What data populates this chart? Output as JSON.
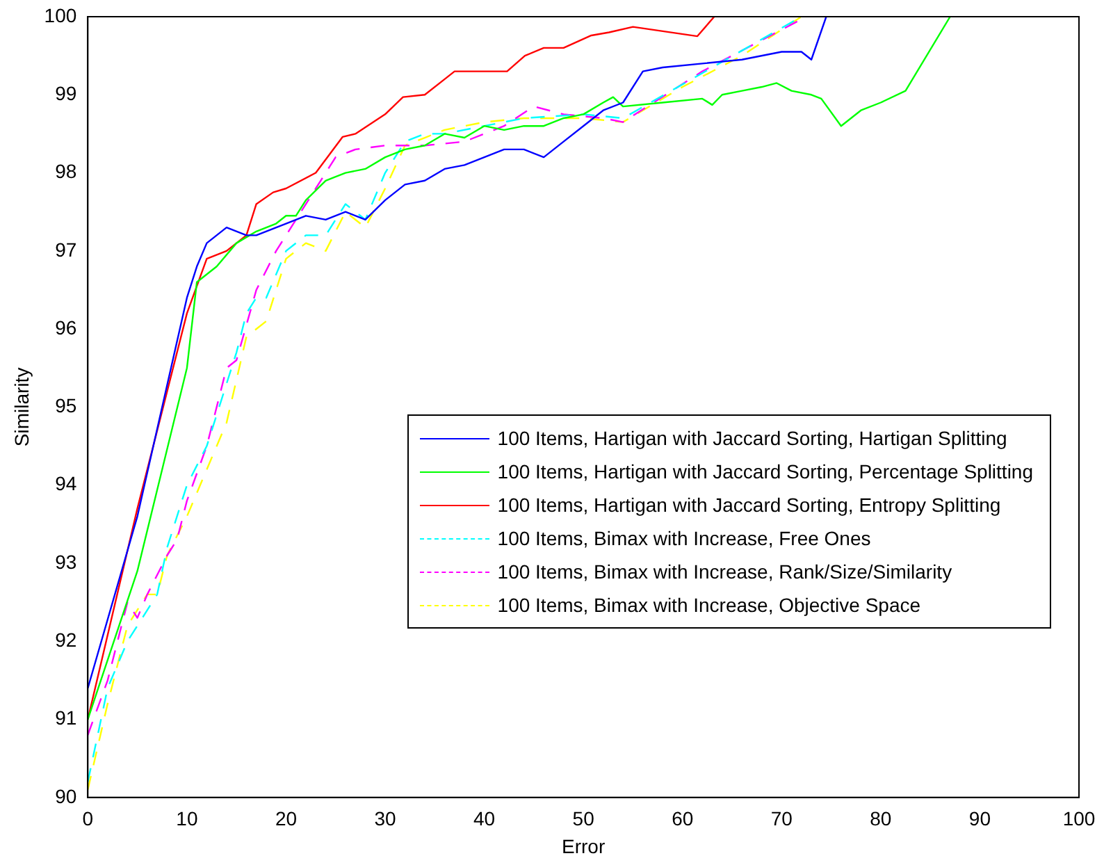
{
  "chart_data": {
    "type": "line",
    "xlabel": "Error",
    "ylabel": "Similarity",
    "xlim": [
      0,
      100
    ],
    "xticks": [
      0,
      10,
      20,
      30,
      40,
      50,
      60,
      70,
      80,
      90,
      100
    ],
    "ylim": [
      90,
      100
    ],
    "yticks": [
      90,
      91,
      92,
      93,
      94,
      95,
      96,
      97,
      98,
      99,
      100
    ],
    "grid": false,
    "legend": "right",
    "marker": "none",
    "series": [
      {
        "name": "100 Items, Hartigan with Jaccard Sorting, Hartigan Splitting",
        "color": "#0000ff",
        "line_style": "solid",
        "x": [
          0,
          5,
          10,
          11,
          12,
          14,
          16,
          17,
          20,
          22,
          24,
          26,
          28,
          30,
          32,
          34,
          36,
          38,
          40,
          42,
          44,
          46,
          48,
          50,
          52,
          54,
          56,
          58,
          62,
          66,
          70,
          72,
          73,
          74.5
        ],
        "values": [
          91.4,
          93.6,
          96.4,
          96.8,
          97.1,
          97.3,
          97.2,
          97.2,
          97.35,
          97.45,
          97.4,
          97.5,
          97.4,
          97.65,
          97.85,
          97.9,
          98.05,
          98.1,
          98.2,
          98.3,
          98.3,
          98.2,
          98.4,
          98.6,
          98.8,
          98.9,
          99.3,
          99.35,
          99.4,
          99.45,
          99.55,
          99.55,
          99.45,
          100
        ]
      },
      {
        "name": "100 Items, Hartigan with Jaccard Sorting, Percentage Splitting",
        "color": "#00ff00",
        "line_style": "solid",
        "x": [
          0,
          5,
          10,
          11,
          13,
          15,
          17,
          19,
          20,
          21,
          22,
          24,
          26,
          28,
          30,
          32,
          34,
          36,
          38,
          40,
          42,
          44,
          46,
          48,
          50,
          52,
          53,
          54,
          58,
          62,
          63,
          64,
          66,
          68,
          69.5,
          71,
          73,
          74,
          76,
          78,
          80,
          82.5,
          87
        ],
        "values": [
          91,
          92.9,
          95.5,
          96.6,
          96.8,
          97.1,
          97.25,
          97.35,
          97.45,
          97.45,
          97.65,
          97.9,
          98,
          98.05,
          98.2,
          98.3,
          98.35,
          98.5,
          98.45,
          98.6,
          98.55,
          98.6,
          98.6,
          98.7,
          98.75,
          98.9,
          98.97,
          98.85,
          98.9,
          98.95,
          98.87,
          99,
          99.05,
          99.1,
          99.15,
          99.05,
          99,
          98.95,
          98.6,
          98.8,
          98.9,
          99.05,
          100
        ]
      },
      {
        "name": "100 Items, Hartigan with Jaccard Sorting, Entropy Splitting",
        "color": "#ff0000",
        "line_style": "solid",
        "x": [
          0,
          5,
          10,
          12,
          14,
          16,
          17,
          18.7,
          20,
          23,
          25.7,
          27,
          30,
          31.8,
          34,
          36,
          37,
          42.3,
          44.1,
          46,
          48,
          50.8,
          52.6,
          55,
          61.5,
          63.2
        ],
        "values": [
          91,
          93.7,
          96.2,
          96.9,
          97,
          97.2,
          97.6,
          97.75,
          97.8,
          98,
          98.46,
          98.5,
          98.75,
          98.97,
          99,
          99.2,
          99.3,
          99.3,
          99.5,
          99.6,
          99.6,
          99.76,
          99.8,
          99.87,
          99.75,
          100
        ]
      },
      {
        "name": "100 Items, Bimax with Increase, Free Ones",
        "color": "#00ffff",
        "line_style": "dashed",
        "x": [
          0,
          2,
          4,
          6,
          7,
          8,
          10,
          12,
          14,
          15,
          16,
          17,
          18,
          20,
          22,
          24,
          26,
          28,
          30,
          32,
          34,
          36,
          40,
          44,
          50,
          54,
          72
        ],
        "values": [
          90.2,
          91.4,
          92,
          92.4,
          92.6,
          93.2,
          94,
          94.5,
          95.3,
          95.7,
          96.2,
          96.4,
          96.4,
          97,
          97.2,
          97.2,
          97.6,
          97.4,
          98,
          98.4,
          98.5,
          98.5,
          98.6,
          98.7,
          98.75,
          98.7,
          100
        ]
      },
      {
        "name": "100 Items, Bimax with Increase, Rank/Size/Similarity",
        "color": "#ff00ff",
        "line_style": "dashed",
        "x": [
          0,
          2,
          4,
          5,
          6,
          8,
          9,
          10,
          12,
          14,
          15,
          17,
          19,
          21,
          23,
          25,
          27,
          30,
          34,
          38,
          42,
          45,
          48,
          52,
          54,
          62,
          72.5
        ],
        "values": [
          90.8,
          91.5,
          92.5,
          92.3,
          92.6,
          93.1,
          93.3,
          93.8,
          94.5,
          95.5,
          95.6,
          96.5,
          97,
          97.4,
          97.8,
          98.2,
          98.3,
          98.35,
          98.35,
          98.4,
          98.6,
          98.85,
          98.75,
          98.7,
          98.65,
          99.3,
          100
        ]
      },
      {
        "name": "100 Items, Bimax with Increase, Objective Space",
        "color": "#ffff00",
        "line_style": "dashed",
        "x": [
          0,
          2,
          4,
          6,
          7,
          8,
          10,
          12,
          14,
          16,
          18,
          20,
          22,
          24,
          26,
          28,
          30,
          32,
          34,
          36,
          38,
          40,
          44,
          50,
          54,
          60,
          66,
          72
        ],
        "values": [
          90.1,
          91.2,
          92.2,
          92.6,
          92.6,
          93.1,
          93.6,
          94.2,
          94.8,
          95.9,
          96.1,
          96.9,
          97.1,
          97,
          97.5,
          97.3,
          97.8,
          98.35,
          98.45,
          98.55,
          98.6,
          98.65,
          98.7,
          98.7,
          98.65,
          99.1,
          99.5,
          100
        ]
      }
    ]
  }
}
